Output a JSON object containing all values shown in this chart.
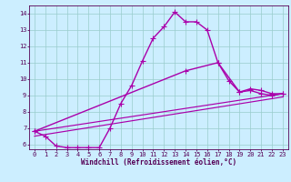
{
  "background_color": "#cceeff",
  "grid_color": "#99cccc",
  "line_color": "#aa00aa",
  "marker": "+",
  "markersize": 4,
  "linewidth": 1.0,
  "xlim": [
    -0.5,
    23.5
  ],
  "ylim": [
    5.7,
    14.5
  ],
  "xlabel": "Windchill (Refroidissement éolien,°C)",
  "xlabel_fontsize": 5.5,
  "tick_fontsize": 5.0,
  "xticks": [
    0,
    1,
    2,
    3,
    4,
    5,
    6,
    7,
    8,
    9,
    10,
    11,
    12,
    13,
    14,
    15,
    16,
    17,
    18,
    19,
    20,
    21,
    22,
    23
  ],
  "yticks": [
    6,
    7,
    8,
    9,
    10,
    11,
    12,
    13,
    14
  ],
  "line1_x": [
    0,
    1,
    2,
    3,
    4,
    5,
    6,
    7,
    8,
    9,
    10,
    11,
    12,
    13,
    14,
    15,
    16,
    17,
    18,
    19,
    20,
    21,
    22,
    23
  ],
  "line1_y": [
    6.8,
    6.5,
    5.9,
    5.8,
    5.8,
    5.8,
    5.8,
    7.0,
    8.5,
    9.6,
    11.1,
    12.5,
    13.2,
    14.1,
    13.5,
    13.5,
    13.0,
    11.0,
    9.9,
    9.2,
    9.3,
    9.1,
    9.0,
    9.1
  ],
  "line2_x": [
    0,
    14,
    17,
    19,
    20,
    21,
    22,
    23
  ],
  "line2_y": [
    6.8,
    10.5,
    11.0,
    9.2,
    9.4,
    9.3,
    9.1,
    9.1
  ],
  "line3_x": [
    0,
    23
  ],
  "line3_y": [
    6.8,
    9.1
  ],
  "line4_x": [
    0,
    23
  ],
  "line4_y": [
    6.5,
    8.9
  ]
}
